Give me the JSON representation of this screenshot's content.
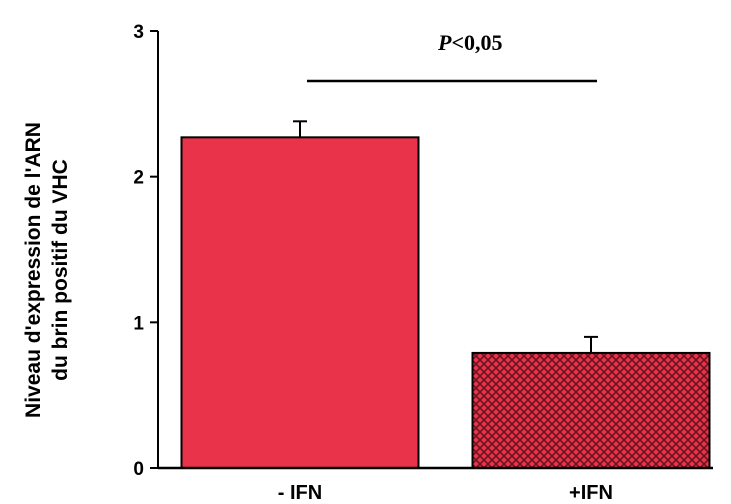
{
  "chart_data": {
    "type": "bar",
    "categories": [
      "- IFN",
      "+IFN"
    ],
    "values": [
      2.27,
      0.79
    ],
    "errors": [
      0.11,
      0.11
    ],
    "ylabel_lines": [
      "Niveau d'expression de l'ARN",
      "du brin positif  du VHC"
    ],
    "ylim": [
      0,
      3
    ],
    "yticks": [
      "0",
      "1",
      "2",
      "3"
    ],
    "grid": false,
    "annotation": {
      "italic": "P",
      "rest": "<0,05"
    },
    "colors": {
      "bar_fill": "#e8334a",
      "hatch_line": "#6a1420",
      "stroke": "#000000"
    }
  }
}
